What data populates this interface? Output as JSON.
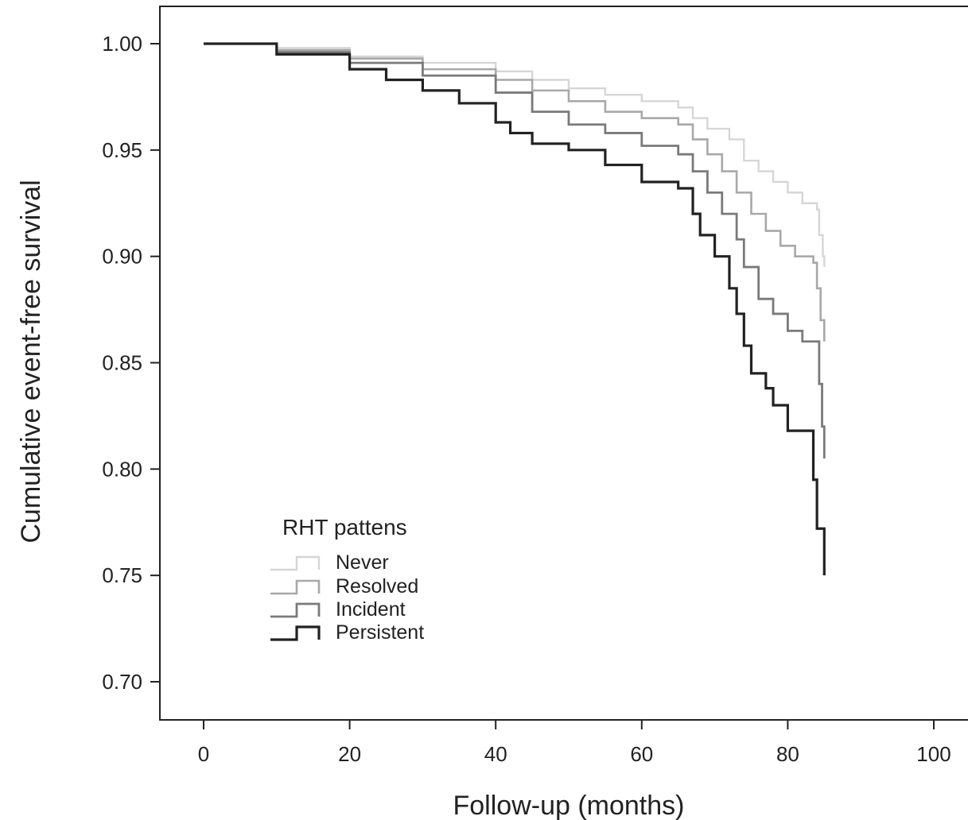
{
  "chart_data": {
    "type": "line",
    "step": true,
    "xlabel": "Follow-up (months)",
    "ylabel": "Cumulative event-free survival",
    "xlim": [
      -2,
      103
    ],
    "ylim": [
      0.683,
      1.018
    ],
    "xticks": [
      0,
      20,
      40,
      60,
      80,
      100
    ],
    "yticks": [
      0.7,
      0.75,
      0.8,
      0.85,
      0.9,
      0.95,
      1.0
    ],
    "xtick_labels": [
      "0",
      "20",
      "40",
      "60",
      "80",
      "100"
    ],
    "ytick_labels": [
      "0.70",
      "0.75",
      "0.80",
      "0.85",
      "0.90",
      "0.95",
      "1.00"
    ],
    "grid": false,
    "legend": {
      "title": "RHT pattens",
      "position": "lower-left"
    },
    "series": [
      {
        "name": "Never",
        "color": "#d6d6d6",
        "points": [
          [
            0,
            1.0
          ],
          [
            10,
            0.998
          ],
          [
            20,
            0.994
          ],
          [
            30,
            0.991
          ],
          [
            40,
            0.987
          ],
          [
            45,
            0.983
          ],
          [
            50,
            0.979
          ],
          [
            55,
            0.976
          ],
          [
            60,
            0.973
          ],
          [
            65,
            0.97
          ],
          [
            67,
            0.965
          ],
          [
            69,
            0.96
          ],
          [
            72,
            0.955
          ],
          [
            74,
            0.945
          ],
          [
            76,
            0.94
          ],
          [
            78,
            0.935
          ],
          [
            80,
            0.93
          ],
          [
            82,
            0.925
          ],
          [
            84,
            0.922
          ],
          [
            84.3,
            0.91
          ],
          [
            84.8,
            0.9
          ],
          [
            85,
            0.895
          ]
        ]
      },
      {
        "name": "Resolved",
        "color": "#a8a8a8",
        "points": [
          [
            0,
            1.0
          ],
          [
            10,
            0.997
          ],
          [
            20,
            0.993
          ],
          [
            30,
            0.988
          ],
          [
            40,
            0.983
          ],
          [
            45,
            0.978
          ],
          [
            50,
            0.973
          ],
          [
            55,
            0.968
          ],
          [
            60,
            0.965
          ],
          [
            65,
            0.962
          ],
          [
            67,
            0.955
          ],
          [
            69,
            0.948
          ],
          [
            71,
            0.94
          ],
          [
            73,
            0.93
          ],
          [
            75,
            0.92
          ],
          [
            77,
            0.912
          ],
          [
            79,
            0.905
          ],
          [
            81,
            0.9
          ],
          [
            83.5,
            0.897
          ],
          [
            84,
            0.885
          ],
          [
            84.5,
            0.87
          ],
          [
            85,
            0.86
          ]
        ]
      },
      {
        "name": "Incident",
        "color": "#7a7a7a",
        "points": [
          [
            0,
            1.0
          ],
          [
            10,
            0.996
          ],
          [
            20,
            0.991
          ],
          [
            30,
            0.985
          ],
          [
            40,
            0.977
          ],
          [
            45,
            0.968
          ],
          [
            50,
            0.962
          ],
          [
            55,
            0.958
          ],
          [
            60,
            0.952
          ],
          [
            65,
            0.948
          ],
          [
            67,
            0.94
          ],
          [
            69,
            0.93
          ],
          [
            71,
            0.92
          ],
          [
            73,
            0.908
          ],
          [
            74,
            0.895
          ],
          [
            76,
            0.88
          ],
          [
            78,
            0.873
          ],
          [
            80,
            0.865
          ],
          [
            82,
            0.86
          ],
          [
            84,
            0.86
          ],
          [
            84.3,
            0.84
          ],
          [
            84.7,
            0.82
          ],
          [
            85,
            0.805
          ]
        ]
      },
      {
        "name": "Persistent",
        "color": "#222222",
        "points": [
          [
            0,
            1.0
          ],
          [
            10,
            0.995
          ],
          [
            20,
            0.988
          ],
          [
            25,
            0.983
          ],
          [
            30,
            0.978
          ],
          [
            35,
            0.972
          ],
          [
            40,
            0.963
          ],
          [
            42,
            0.958
          ],
          [
            45,
            0.953
          ],
          [
            50,
            0.95
          ],
          [
            55,
            0.943
          ],
          [
            60,
            0.935
          ],
          [
            65,
            0.932
          ],
          [
            67,
            0.92
          ],
          [
            68,
            0.91
          ],
          [
            70,
            0.9
          ],
          [
            72,
            0.885
          ],
          [
            73,
            0.873
          ],
          [
            74,
            0.858
          ],
          [
            75,
            0.845
          ],
          [
            77,
            0.838
          ],
          [
            78,
            0.83
          ],
          [
            80,
            0.818
          ],
          [
            83,
            0.818
          ],
          [
            83.5,
            0.795
          ],
          [
            84,
            0.772
          ],
          [
            85,
            0.75
          ]
        ]
      }
    ]
  }
}
